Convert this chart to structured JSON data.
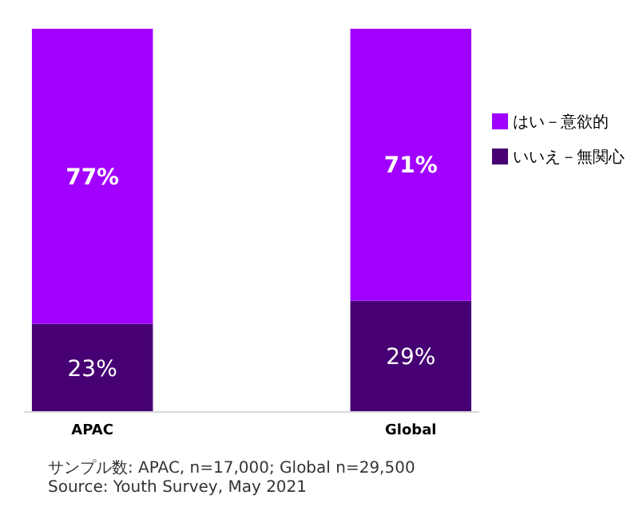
{
  "chart_data": {
    "type": "bar",
    "stacked": true,
    "categories": [
      "APAC",
      "Global"
    ],
    "series": [
      {
        "name": "いいえ－無関心",
        "color": "#460073",
        "values": [
          23,
          29
        ],
        "value_labels": [
          "23%",
          "29%"
        ]
      },
      {
        "name": "はい－意欲的",
        "color": "#a100ff",
        "values": [
          77,
          71
        ],
        "value_labels": [
          "77%",
          "71%"
        ]
      }
    ],
    "legend": "right",
    "annotations": [
      "サンプル数: APAC, n=17,000; Global n=29,500",
      "Source: Youth Survey, May 2021"
    ]
  }
}
